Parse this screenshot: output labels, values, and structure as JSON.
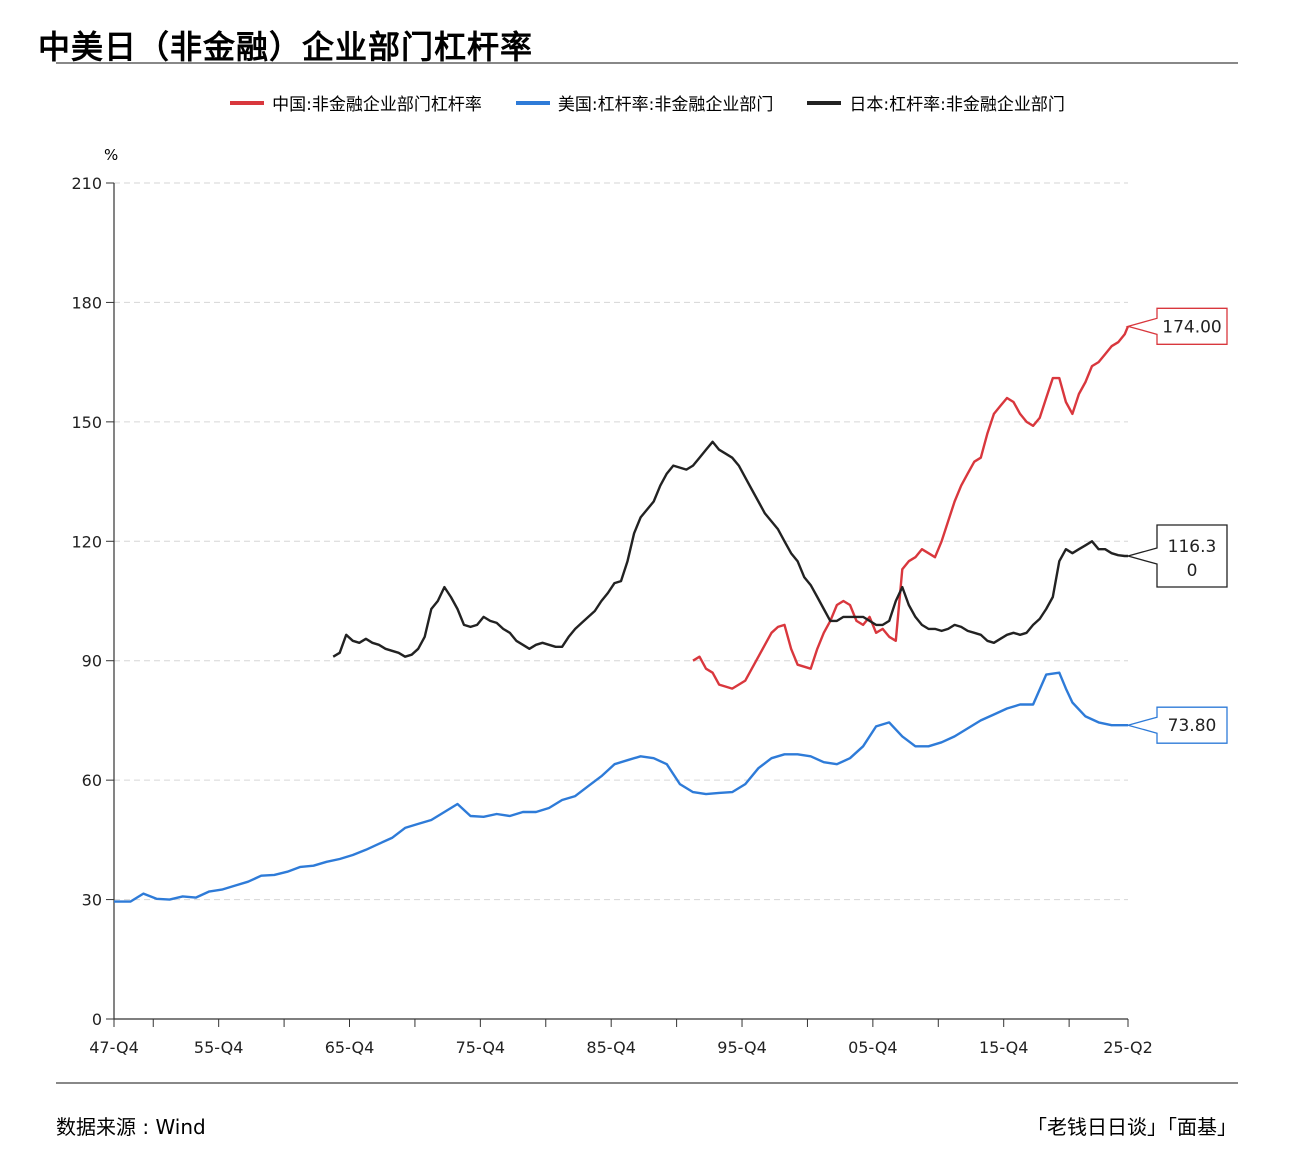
{
  "title": "中美日（非金融）企业部门杠杆率",
  "unit": "%",
  "source": "数据来源 : Wind",
  "credit": "「老钱日日谈」「面基」",
  "chart_data": {
    "type": "line",
    "title": "中美日（非金融）企业部门杠杆率",
    "ylabel": "%",
    "ylim": [
      0,
      210
    ],
    "yticks": [
      0,
      30,
      60,
      90,
      120,
      150,
      180,
      210
    ],
    "xlim": [
      1947.75,
      2025.25
    ],
    "xticks": [
      {
        "x": 1947.75,
        "label": "47-Q4"
      },
      {
        "x": 1955.75,
        "label": "55-Q4"
      },
      {
        "x": 1965.75,
        "label": "65-Q4"
      },
      {
        "x": 1975.75,
        "label": "75-Q4"
      },
      {
        "x": 1985.75,
        "label": "85-Q4"
      },
      {
        "x": 1995.75,
        "label": "95-Q4"
      },
      {
        "x": 2005.75,
        "label": "05-Q4"
      },
      {
        "x": 2015.75,
        "label": "15-Q4"
      },
      {
        "x": 2025.25,
        "label": "25-Q2"
      }
    ],
    "minor_xticks": [
      1950.75,
      1960.75,
      1970.75,
      1980.75,
      1990.75,
      2000.75,
      2010.75,
      2020.75
    ],
    "grid": true,
    "legend_position": "top",
    "series": [
      {
        "name": "中国:非金融企业部门杠杆率",
        "color": "#d9373d",
        "end_label": "174.00",
        "x": [
          1992.0,
          1992.5,
          1993.0,
          1993.5,
          1994.0,
          1994.5,
          1995.0,
          1995.5,
          1996.0,
          1996.5,
          1997.0,
          1997.5,
          1998.0,
          1998.5,
          1999.0,
          1999.5,
          2000.0,
          2000.5,
          2001.0,
          2001.5,
          2002.0,
          2002.5,
          2003.0,
          2003.5,
          2004.0,
          2004.5,
          2005.0,
          2005.5,
          2006.0,
          2006.5,
          2007.0,
          2007.5,
          2008.0,
          2008.5,
          2009.0,
          2009.5,
          2010.0,
          2010.5,
          2011.0,
          2011.5,
          2012.0,
          2012.5,
          2013.0,
          2013.5,
          2014.0,
          2014.5,
          2015.0,
          2015.5,
          2016.0,
          2016.5,
          2017.0,
          2017.5,
          2018.0,
          2018.5,
          2019.0,
          2019.5,
          2020.0,
          2020.5,
          2021.0,
          2021.5,
          2022.0,
          2022.5,
          2023.0,
          2023.5,
          2024.0,
          2024.5,
          2025.0,
          2025.25
        ],
        "y": [
          90,
          91,
          88,
          87,
          84,
          83.5,
          83,
          84,
          85,
          88,
          91,
          94,
          97,
          98.5,
          99,
          93,
          89,
          88.5,
          88,
          93,
          97,
          100,
          104,
          105,
          104,
          100,
          99,
          101,
          97,
          98,
          96,
          95,
          113,
          115,
          116,
          118,
          117,
          116,
          120,
          125,
          130,
          134,
          137,
          140,
          141,
          147,
          152,
          154,
          156,
          155,
          152,
          150,
          149,
          151,
          156,
          161,
          161,
          155,
          152,
          157,
          160,
          164,
          165,
          167,
          169,
          170,
          172,
          174
        ]
      },
      {
        "name": "美国:杠杆率:非金融企业部门",
        "color": "#2e7bd8",
        "end_label": "73.80",
        "x": [
          1947.75,
          1949.0,
          1950.0,
          1951.0,
          1952.0,
          1953.0,
          1954.0,
          1955.0,
          1956.0,
          1957.0,
          1958.0,
          1959.0,
          1960.0,
          1961.0,
          1962.0,
          1963.0,
          1964.0,
          1965.0,
          1966.0,
          1967.0,
          1968.0,
          1969.0,
          1970.0,
          1971.0,
          1972.0,
          1973.0,
          1974.0,
          1975.0,
          1976.0,
          1977.0,
          1978.0,
          1979.0,
          1980.0,
          1981.0,
          1982.0,
          1983.0,
          1984.0,
          1985.0,
          1986.0,
          1987.0,
          1988.0,
          1989.0,
          1990.0,
          1991.0,
          1992.0,
          1993.0,
          1994.0,
          1995.0,
          1996.0,
          1997.0,
          1998.0,
          1999.0,
          2000.0,
          2001.0,
          2002.0,
          2003.0,
          2004.0,
          2005.0,
          2006.0,
          2007.0,
          2008.0,
          2009.0,
          2010.0,
          2011.0,
          2012.0,
          2013.0,
          2014.0,
          2015.0,
          2016.0,
          2017.0,
          2018.0,
          2019.0,
          2020.0,
          2020.5,
          2021.0,
          2022.0,
          2023.0,
          2024.0,
          2025.0,
          2025.25
        ],
        "y": [
          29.5,
          29.5,
          31.5,
          30.2,
          30.0,
          30.8,
          30.5,
          32.0,
          32.5,
          33.5,
          34.5,
          36.0,
          36.2,
          37.0,
          38.2,
          38.5,
          39.5,
          40.2,
          41.2,
          42.5,
          44.0,
          45.5,
          48.0,
          49.0,
          50.0,
          52.0,
          54.0,
          51.0,
          50.8,
          51.5,
          51.0,
          52.0,
          52.0,
          53.0,
          55.0,
          56.0,
          58.5,
          61.0,
          64.0,
          65.0,
          66.0,
          65.5,
          64.0,
          59.0,
          57.0,
          56.5,
          56.8,
          57.0,
          59.0,
          63.0,
          65.5,
          66.5,
          66.5,
          66.0,
          64.5,
          64.0,
          65.5,
          68.5,
          73.5,
          74.5,
          71.0,
          68.5,
          68.5,
          69.5,
          71.0,
          73.0,
          75.0,
          76.5,
          78.0,
          79.0,
          79.0,
          86.5,
          87.0,
          83.0,
          79.5,
          76.0,
          74.5,
          73.8,
          73.8,
          73.8
        ]
      },
      {
        "name": "日本:杠杆率:非金融企业部门",
        "color": "#222222",
        "end_label": "116.30",
        "x": [
          1964.5,
          1965.0,
          1965.5,
          1966.0,
          1966.5,
          1967.0,
          1967.5,
          1968.0,
          1968.5,
          1969.0,
          1969.5,
          1970.0,
          1970.5,
          1971.0,
          1971.5,
          1972.0,
          1972.5,
          1973.0,
          1973.5,
          1974.0,
          1974.5,
          1975.0,
          1975.5,
          1976.0,
          1976.5,
          1977.0,
          1977.5,
          1978.0,
          1978.5,
          1979.0,
          1979.5,
          1980.0,
          1980.5,
          1981.0,
          1981.5,
          1982.0,
          1982.5,
          1983.0,
          1983.5,
          1984.0,
          1984.5,
          1985.0,
          1985.5,
          1986.0,
          1986.5,
          1987.0,
          1987.5,
          1988.0,
          1988.5,
          1989.0,
          1989.5,
          1990.0,
          1990.5,
          1991.0,
          1991.5,
          1992.0,
          1992.5,
          1993.0,
          1993.5,
          1994.0,
          1994.5,
          1995.0,
          1995.5,
          1996.0,
          1996.5,
          1997.0,
          1997.5,
          1998.0,
          1998.5,
          1999.0,
          1999.5,
          2000.0,
          2000.5,
          2001.0,
          2001.5,
          2002.0,
          2002.5,
          2003.0,
          2003.5,
          2004.0,
          2004.5,
          2005.0,
          2005.5,
          2006.0,
          2006.5,
          2007.0,
          2007.5,
          2008.0,
          2008.5,
          2009.0,
          2009.5,
          2010.0,
          2010.5,
          2011.0,
          2011.5,
          2012.0,
          2012.5,
          2013.0,
          2013.5,
          2014.0,
          2014.5,
          2015.0,
          2015.5,
          2016.0,
          2016.5,
          2017.0,
          2017.5,
          2018.0,
          2018.5,
          2019.0,
          2019.5,
          2020.0,
          2020.5,
          2021.0,
          2021.5,
          2022.0,
          2022.5,
          2023.0,
          2023.5,
          2024.0,
          2024.5,
          2025.0,
          2025.25
        ],
        "y": [
          91,
          92,
          96.5,
          95,
          94.5,
          95.5,
          94.5,
          94,
          93,
          92.5,
          92,
          91,
          91.5,
          93,
          96,
          103,
          105,
          108.5,
          106,
          103,
          99,
          98.5,
          99,
          101,
          100,
          99.5,
          98,
          97,
          95,
          94,
          93,
          94,
          94.5,
          94,
          93.5,
          93.5,
          96,
          98,
          99.5,
          101,
          102.5,
          105,
          107,
          109.5,
          110,
          115,
          122,
          126,
          128,
          130,
          134,
          137,
          139,
          138.5,
          138,
          139,
          141,
          143,
          145,
          143,
          142,
          141,
          139,
          136,
          133,
          130,
          127,
          125,
          123,
          120,
          117,
          115,
          111,
          109,
          106,
          103,
          100,
          100,
          101,
          101,
          101,
          101,
          100,
          99,
          99,
          100,
          105,
          108.5,
          104,
          101,
          99,
          98,
          98,
          97.5,
          98,
          99,
          98.5,
          97.5,
          97,
          96.5,
          95,
          94.5,
          95.5,
          96.5,
          97,
          96.5,
          97,
          99,
          100.5,
          103,
          106,
          115,
          118,
          117,
          118,
          119,
          120,
          118,
          118,
          117,
          116.5,
          116.3,
          116.3
        ]
      }
    ]
  }
}
